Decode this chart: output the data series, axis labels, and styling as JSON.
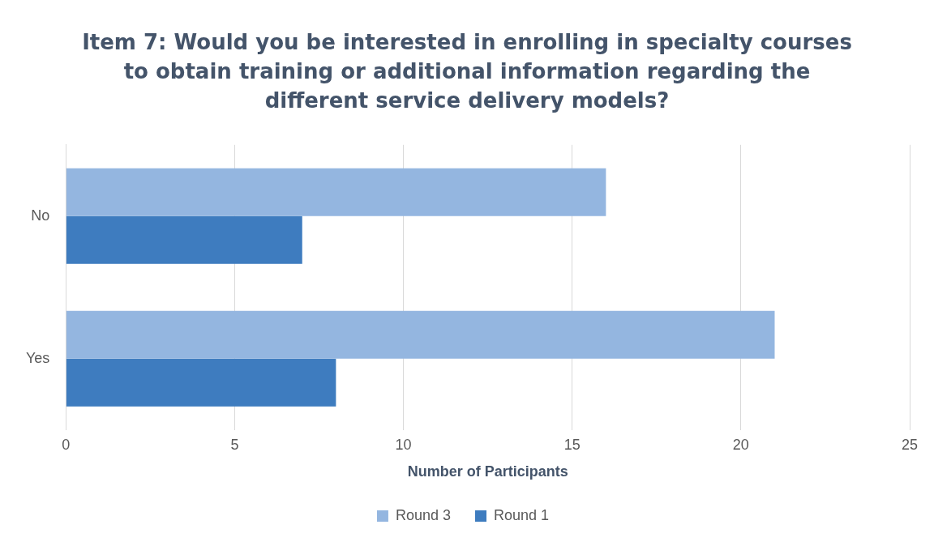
{
  "chart_data": {
    "type": "bar",
    "orientation": "horizontal",
    "title": "Item 7: Would you be interested in enrolling in specialty courses to obtain training or additional information regarding the different service delivery models?",
    "xlabel": "Number of Participants",
    "categories": [
      "No",
      "Yes"
    ],
    "series": [
      {
        "name": "Round 3",
        "color": "#94b6e0",
        "values": [
          16,
          21
        ]
      },
      {
        "name": "Round 1",
        "color": "#3e7cbf",
        "values": [
          7,
          8
        ]
      }
    ],
    "xlim": [
      0,
      25
    ],
    "xticks": [
      0,
      5,
      10,
      15,
      20,
      25
    ],
    "grid": "x",
    "legend": "bottom"
  }
}
